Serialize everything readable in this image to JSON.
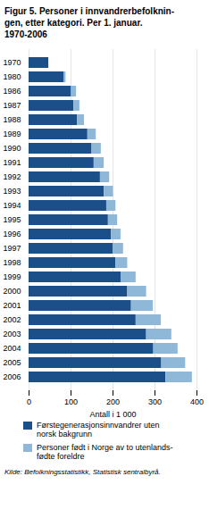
{
  "chart_data": {
    "type": "bar",
    "orientation": "horizontal",
    "stacked": true,
    "title": "Figur 5. Personer i innvandrerbefolknin-\ngen, etter kategori. Per 1. januar.\n1970-2006",
    "x_label": "Antall i 1 000",
    "categories": [
      "1970",
      "1980",
      "1986",
      "1987",
      "1988",
      "1989",
      "1990",
      "1991",
      "1992",
      "1993",
      "1994",
      "1995",
      "1996",
      "1997",
      "1998",
      "1999",
      "2000",
      "2001",
      "2002",
      "2003",
      "2004",
      "2005",
      "2006"
    ],
    "series": [
      {
        "name": "Førstegenerasjonsinnvandrer uten\nnorsk bakgrunn",
        "color": "#1a4f8a",
        "values": [
          47,
          83,
          101,
          107,
          115,
          140,
          150,
          155,
          170,
          179,
          185,
          189,
          196,
          200,
          207,
          220,
          235,
          244,
          255,
          280,
          297,
          316,
          326
        ]
      },
      {
        "name": "Personer født i Norge av to utenlands-\nfødte foreldre",
        "color": "#8fb8d8",
        "values": [
          0,
          5,
          12,
          14,
          17,
          20,
          22,
          24,
          22,
          22,
          22,
          22,
          23,
          25,
          28,
          35,
          45,
          52,
          60,
          60,
          58,
          57,
          63
        ]
      }
    ],
    "xlim": [
      0,
      400
    ],
    "xticks": [
      0,
      100,
      200,
      300,
      400
    ],
    "grid": true,
    "legend": "bottom",
    "annotations": [
      "Kilde: Befolkningsstatistikk, Statistisk sentralbyrå."
    ]
  }
}
